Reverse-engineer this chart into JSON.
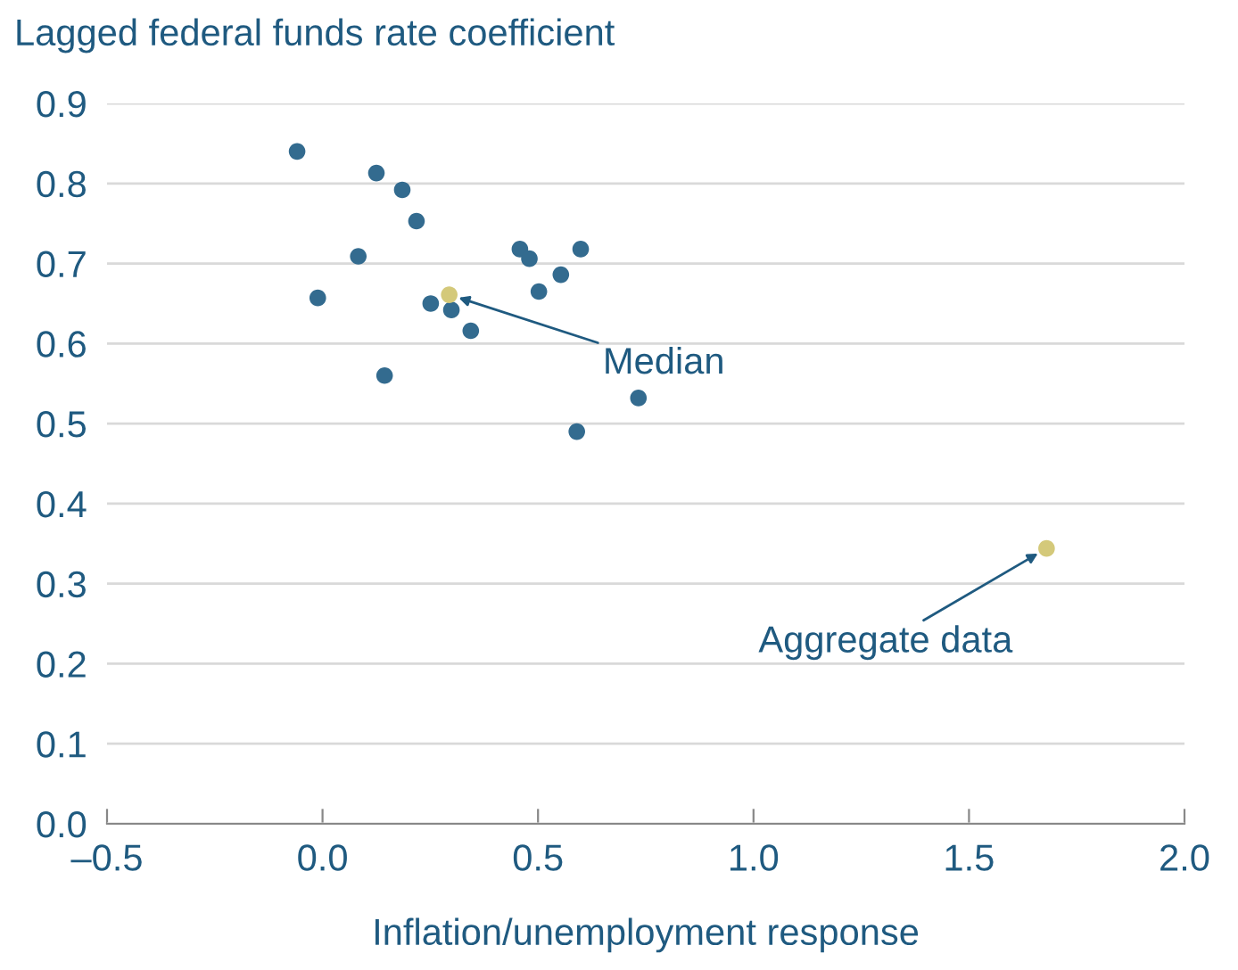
{
  "chart_data": {
    "type": "scatter",
    "ylabel": "Lagged federal funds rate coefficient",
    "xlabel": "Inflation/unemployment response",
    "series": [
      {
        "color": "#336b8f",
        "x": [
          -0.059,
          0.125,
          0.185,
          0.218,
          0.083,
          -0.011,
          0.251,
          0.299,
          0.344,
          0.144,
          0.458,
          0.48,
          0.553,
          0.502,
          0.599,
          0.59,
          0.733
        ],
        "values": [
          0.84,
          0.813,
          0.792,
          0.753,
          0.709,
          0.657,
          0.65,
          0.642,
          0.616,
          0.56,
          0.718,
          0.706,
          0.686,
          0.665,
          0.718,
          0.49,
          0.532
        ]
      },
      {
        "color": "#d4c97a",
        "x": [
          0.294,
          1.68
        ],
        "values": [
          0.661,
          0.344
        ]
      }
    ],
    "annotations": [
      {
        "text": "Median",
        "x": 0.294,
        "y": 0.661
      },
      {
        "text": "Aggregate data",
        "x": 1.68,
        "y": 0.344
      }
    ],
    "xlim": [
      -0.5,
      2.0
    ],
    "xticks": [
      {
        "value": -0.5,
        "label": "–0.5"
      },
      {
        "value": 0.0,
        "label": "0.0"
      },
      {
        "value": 0.5,
        "label": "0.5"
      },
      {
        "value": 1.0,
        "label": "1.0"
      },
      {
        "value": 1.5,
        "label": "1.5"
      },
      {
        "value": 2.0,
        "label": "2.0"
      }
    ],
    "ylim": [
      0.0,
      0.9
    ],
    "yticks": [
      {
        "value": 0.0,
        "label": "0.0"
      },
      {
        "value": 0.1,
        "label": "0.1"
      },
      {
        "value": 0.2,
        "label": "0.2"
      },
      {
        "value": 0.3,
        "label": "0.3"
      },
      {
        "value": 0.4,
        "label": "0.4"
      },
      {
        "value": 0.5,
        "label": "0.5"
      },
      {
        "value": 0.6,
        "label": "0.6"
      },
      {
        "value": 0.7,
        "label": "0.7"
      },
      {
        "value": 0.8,
        "label": "0.8"
      },
      {
        "value": 0.9,
        "label": "0.9"
      }
    ],
    "grid": "y",
    "marker": "circle"
  }
}
